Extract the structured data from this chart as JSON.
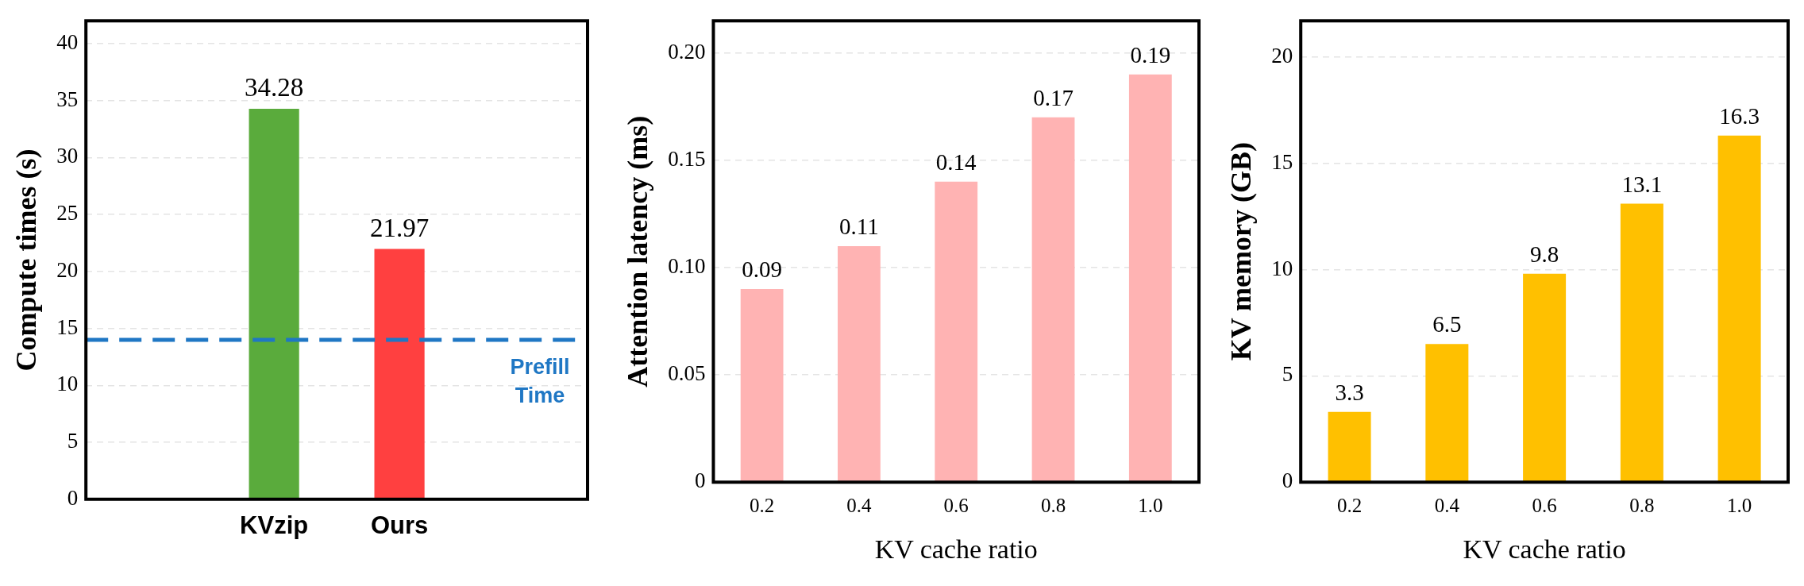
{
  "chart_data": [
    {
      "type": "bar",
      "ylabel": "Compute times (s)",
      "categories": [
        "KVzip",
        "Ours"
      ],
      "values": [
        34.28,
        21.97
      ],
      "colors": [
        "#5aab3c",
        "#ff4040"
      ],
      "ylim": [
        0,
        42
      ],
      "yticks": [
        0,
        5,
        10,
        15,
        20,
        25,
        30,
        35,
        40
      ],
      "grid": "y",
      "legend": false,
      "data_labels": true,
      "ref_lines": [
        {
          "axis": "y",
          "value": 14,
          "label": "Prefill\nTime",
          "color": "#1f77c4",
          "line_style": "dashed"
        }
      ]
    },
    {
      "type": "bar",
      "ylabel": "Attention latency (ms)",
      "xlabel": "KV cache ratio",
      "categories": [
        "0.2",
        "0.4",
        "0.6",
        "0.8",
        "1.0"
      ],
      "values": [
        0.09,
        0.11,
        0.14,
        0.17,
        0.19
      ],
      "color": "#ffb3b3",
      "ylim": [
        0,
        0.215
      ],
      "yticks": [
        0,
        0.05,
        {
          "value": 0.1,
          "label": "0.10"
        },
        0.15,
        {
          "value": 0.2,
          "label": "0.20"
        }
      ],
      "grid": "y",
      "legend": false,
      "data_labels": true
    },
    {
      "type": "bar",
      "ylabel": "KV memory (GB)",
      "xlabel": "KV cache ratio",
      "categories": [
        "0.2",
        "0.4",
        "0.6",
        "0.8",
        "1.0"
      ],
      "values": [
        3.3,
        6.5,
        9.8,
        13.1,
        16.3
      ],
      "color": "#ffc000",
      "ylim": [
        0,
        21.7
      ],
      "yticks": [
        0,
        5,
        10,
        15,
        20
      ],
      "grid": "y",
      "legend": false,
      "data_labels": true
    }
  ]
}
